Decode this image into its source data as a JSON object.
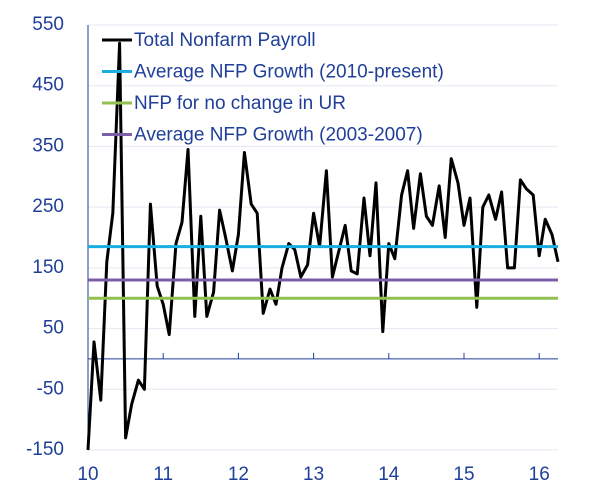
{
  "chart_data": {
    "type": "line",
    "x": [
      10,
      10.08,
      10.17,
      10.25,
      10.33,
      10.42,
      10.5,
      10.58,
      10.67,
      10.75,
      10.83,
      10.92,
      11,
      11.08,
      11.17,
      11.25,
      11.33,
      11.42,
      11.5,
      11.58,
      11.67,
      11.75,
      11.83,
      11.92,
      12,
      12.08,
      12.17,
      12.25,
      12.33,
      12.42,
      12.5,
      12.58,
      12.67,
      12.75,
      12.83,
      12.92,
      13,
      13.08,
      13.17,
      13.25,
      13.33,
      13.42,
      13.5,
      13.58,
      13.67,
      13.75,
      13.83,
      13.92,
      14,
      14.08,
      14.17,
      14.25,
      14.33,
      14.42,
      14.5,
      14.58,
      14.67,
      14.75,
      14.83,
      14.92,
      15,
      15.08,
      15.17,
      15.25,
      15.33,
      15.42,
      15.5,
      15.58,
      15.67,
      15.75,
      15.83,
      15.92,
      16,
      16.08,
      16.17,
      16.25
    ],
    "series": [
      {
        "name": "Total Nonfarm Payroll",
        "color": "#000000",
        "values": [
          -150,
          28,
          -68,
          160,
          240,
          520,
          -130,
          -75,
          -35,
          -50,
          255,
          120,
          90,
          40,
          190,
          225,
          345,
          70,
          235,
          70,
          110,
          245,
          200,
          145,
          205,
          340,
          255,
          240,
          75,
          115,
          90,
          150,
          190,
          180,
          135,
          155,
          240,
          185,
          310,
          135,
          175,
          220,
          145,
          140,
          265,
          170,
          290,
          45,
          190,
          165,
          270,
          310,
          215,
          305,
          235,
          220,
          285,
          200,
          330,
          290,
          220,
          265,
          85,
          250,
          270,
          230,
          275,
          150,
          150,
          295,
          280,
          270,
          170,
          230,
          205,
          160
        ]
      },
      {
        "name": "Average NFP Growth (2010-present)",
        "color": "#1aaee0",
        "value": 185
      },
      {
        "name": "NFP for no change in UR",
        "color": "#92c050",
        "value": 100
      },
      {
        "name": "Average NFP Growth (2003-2007)",
        "color": "#7b5ea7",
        "value": 130
      }
    ],
    "xlim": [
      10,
      16.25
    ],
    "xticks": [
      10,
      11,
      12,
      13,
      14,
      15,
      16
    ],
    "ylim": [
      -150,
      550
    ],
    "yticks": [
      -150,
      -50,
      50,
      150,
      250,
      350,
      450,
      550
    ],
    "grid": true,
    "legend": "top-left"
  }
}
